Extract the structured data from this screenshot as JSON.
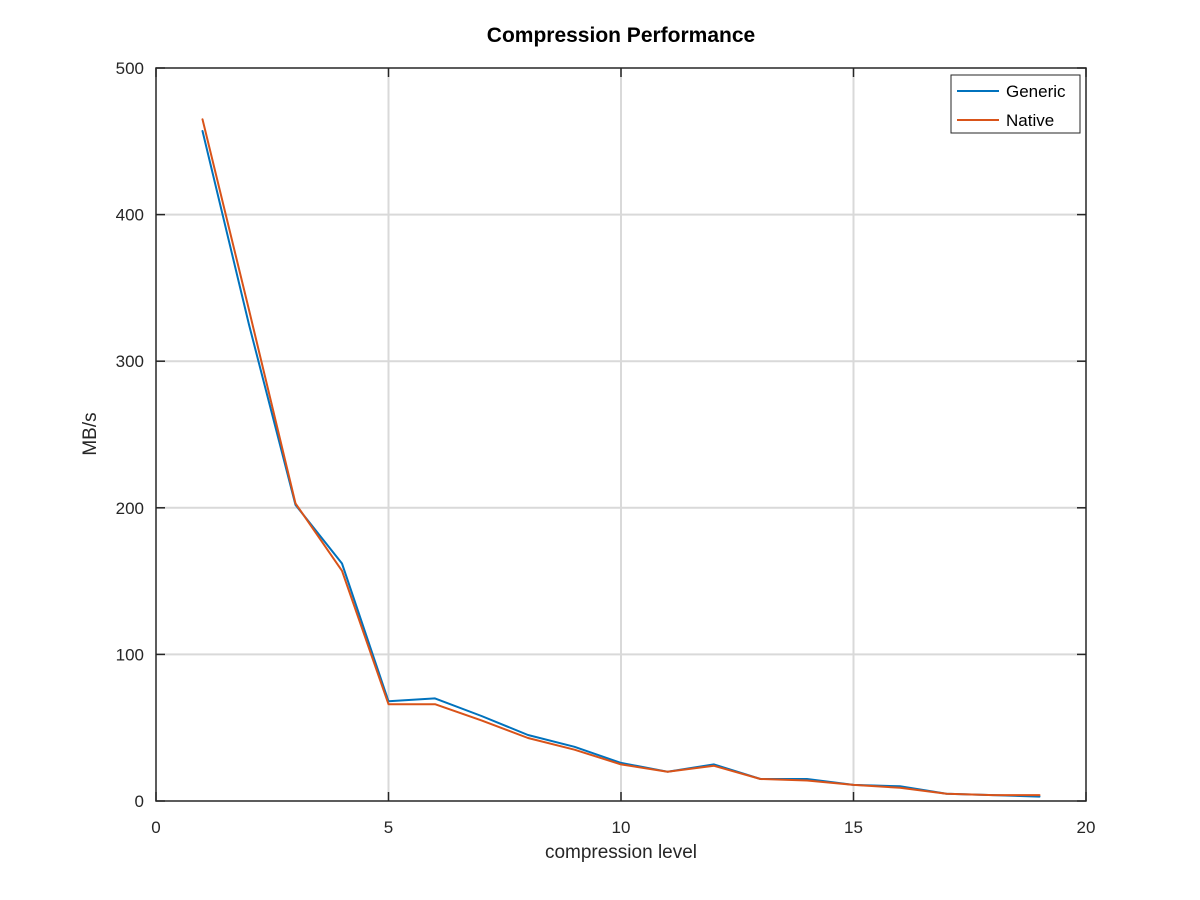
{
  "colors": {
    "generic": "#0072BD",
    "native": "#D95319",
    "grid": "#D9D9D9",
    "axis": "#262626"
  },
  "chart_data": {
    "type": "line",
    "title": "Compression Performance",
    "xlabel": "compression level",
    "ylabel": "MB/s",
    "xlim": [
      0,
      20
    ],
    "ylim": [
      0,
      500
    ],
    "xticks": [
      0,
      5,
      10,
      15,
      20
    ],
    "yticks": [
      0,
      100,
      200,
      300,
      400,
      500
    ],
    "grid": true,
    "legend_position": "top-right",
    "x": [
      1,
      2,
      3,
      4,
      5,
      6,
      7,
      8,
      9,
      10,
      11,
      12,
      13,
      14,
      15,
      16,
      17,
      18,
      19
    ],
    "series": [
      {
        "name": "Generic",
        "color": "#0072BD",
        "values": [
          457,
          325,
          202,
          162,
          68,
          70,
          58,
          45,
          37,
          26,
          20,
          25,
          15,
          15,
          11,
          10,
          5,
          4,
          3
        ]
      },
      {
        "name": "Native",
        "color": "#D95319",
        "values": [
          465,
          335,
          203,
          157,
          66,
          66,
          55,
          43,
          35,
          25,
          20,
          24,
          15,
          14,
          11,
          9,
          5,
          4,
          4
        ]
      }
    ]
  }
}
